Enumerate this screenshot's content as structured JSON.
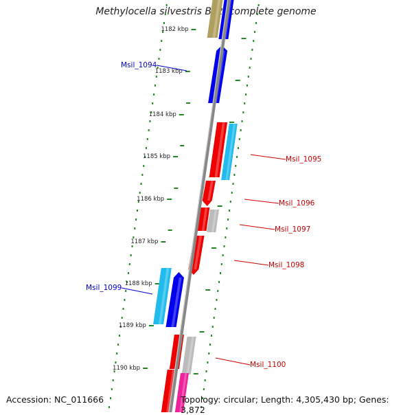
{
  "title": "Methylocella silvestris BL2, complete genome",
  "footer": {
    "accession": "Accession: NC_011666",
    "topology": "Topology: circular; Length: 4,305,430 bp; Genes: 3,872"
  },
  "ruler_labels": [
    "1182 kbp",
    "1183 kbp",
    "1184 kbp",
    "1185 kbp",
    "1186 kbp",
    "1187 kbp",
    "1188 kbp",
    "1189 kbp",
    "1190 kbp"
  ],
  "gene_labels": [
    {
      "id": "forward",
      "text": "Msil_1094",
      "color": "#0000cc"
    },
    {
      "id": "reverse",
      "text": "Msil_1095",
      "color": "#cc0000"
    },
    {
      "id": "reverse",
      "text": "Msil_1096",
      "color": "#cc0000"
    },
    {
      "id": "reverse",
      "text": "Msil_1097",
      "color": "#cc0000"
    },
    {
      "id": "reverse",
      "text": "Msil_1098",
      "color": "#cc0000"
    },
    {
      "id": "forward",
      "text": "Msil_1099",
      "color": "#0000cc"
    },
    {
      "id": "reverse",
      "text": "Msil_1100",
      "color": "#cc0000"
    }
  ],
  "colors": {
    "forward_cds": "#0000ee",
    "reverse_cds": "#ee0000",
    "gene_cyan": "#22bbee",
    "gene_grey": "#bbbbbb",
    "gene_pink": "#ee2299",
    "gene_olive": "#b0a060",
    "backbone": "#888888",
    "tick_green": "#228822"
  }
}
